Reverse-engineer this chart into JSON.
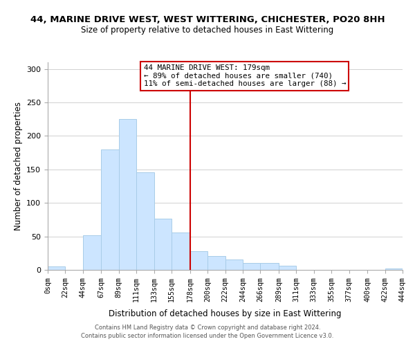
{
  "title": "44, MARINE DRIVE WEST, WEST WITTERING, CHICHESTER, PO20 8HH",
  "subtitle": "Size of property relative to detached houses in East Wittering",
  "xlabel": "Distribution of detached houses by size in East Wittering",
  "ylabel": "Number of detached properties",
  "bar_color": "#cce5ff",
  "bar_edge_color": "#a8cce8",
  "vline_x": 178,
  "vline_color": "#cc0000",
  "annotation_title": "44 MARINE DRIVE WEST: 179sqm",
  "annotation_line1": "← 89% of detached houses are smaller (740)",
  "annotation_line2": "11% of semi-detached houses are larger (88) →",
  "bin_edges": [
    0,
    22,
    44,
    67,
    89,
    111,
    133,
    155,
    178,
    200,
    222,
    244,
    266,
    289,
    311,
    333,
    355,
    377,
    400,
    422,
    444
  ],
  "bin_counts": [
    5,
    0,
    52,
    180,
    225,
    146,
    76,
    56,
    28,
    21,
    16,
    10,
    10,
    6,
    0,
    0,
    0,
    0,
    0,
    2
  ],
  "ylim": [
    0,
    310
  ],
  "yticks": [
    0,
    50,
    100,
    150,
    200,
    250,
    300
  ],
  "tick_labels": [
    "0sqm",
    "22sqm",
    "44sqm",
    "67sqm",
    "89sqm",
    "111sqm",
    "133sqm",
    "155sqm",
    "178sqm",
    "200sqm",
    "222sqm",
    "244sqm",
    "266sqm",
    "289sqm",
    "311sqm",
    "333sqm",
    "355sqm",
    "377sqm",
    "400sqm",
    "422sqm",
    "444sqm"
  ],
  "footer1": "Contains HM Land Registry data © Crown copyright and database right 2024.",
  "footer2": "Contains public sector information licensed under the Open Government Licence v3.0."
}
